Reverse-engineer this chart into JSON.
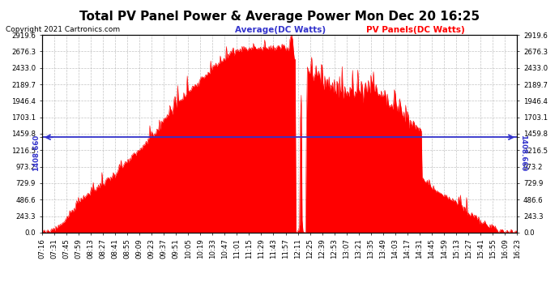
{
  "title": "Total PV Panel Power & Average Power Mon Dec 20 16:25",
  "copyright": "Copyright 2021 Cartronics.com",
  "legend_avg": "Average(DC Watts)",
  "legend_pv": "PV Panels(DC Watts)",
  "average_value": 1408.66,
  "ymax": 2919.6,
  "ymin": 0.0,
  "yticks": [
    0.0,
    243.3,
    486.6,
    729.9,
    973.2,
    1216.5,
    1459.8,
    1703.1,
    1946.4,
    2189.7,
    2433.0,
    2676.3,
    2919.6
  ],
  "fill_color": "#FF0000",
  "avg_line_color": "#3333CC",
  "background_color": "#FFFFFF",
  "grid_color": "#AAAAAA",
  "title_fontsize": 11,
  "tick_fontsize": 6.2,
  "legend_fontsize": 7.5,
  "copyright_fontsize": 6.5,
  "num_points": 547,
  "x_tick_labels": [
    "07:16",
    "07:31",
    "07:45",
    "07:59",
    "08:13",
    "08:27",
    "08:41",
    "08:55",
    "09:09",
    "09:23",
    "09:37",
    "09:51",
    "10:05",
    "10:19",
    "10:33",
    "10:47",
    "11:01",
    "11:15",
    "11:29",
    "11:43",
    "11:57",
    "12:11",
    "12:25",
    "12:39",
    "12:53",
    "13:07",
    "13:21",
    "13:35",
    "13:49",
    "14:03",
    "14:17",
    "14:31",
    "14:45",
    "14:59",
    "15:13",
    "15:27",
    "15:41",
    "15:55",
    "16:09",
    "16:23"
  ]
}
